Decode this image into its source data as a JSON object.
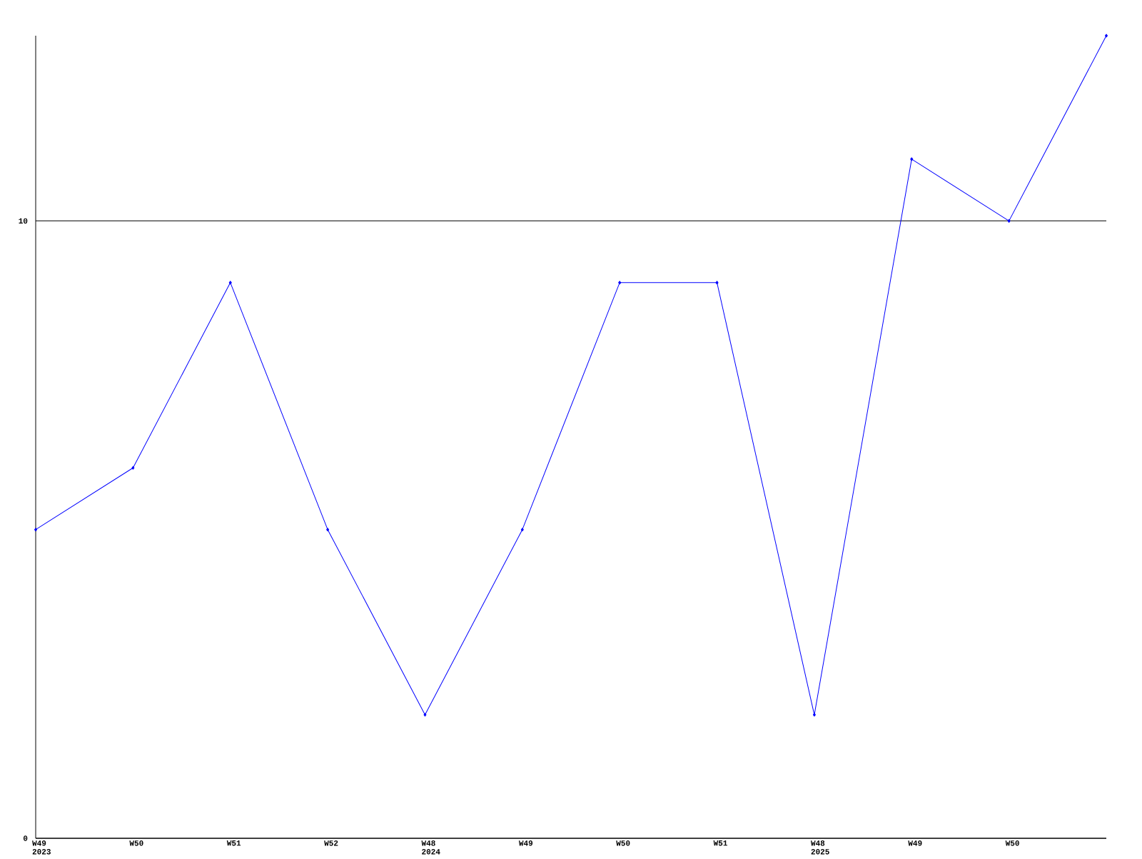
{
  "chart_data": {
    "type": "line",
    "categories": [
      "W49 2023",
      "W50",
      "W51",
      "W52",
      "W48 2024",
      "W49",
      "W50",
      "W51",
      "W48 2025",
      "W49",
      "W50",
      null
    ],
    "series": [
      {
        "color": "#0000ff",
        "values": [
          5,
          6,
          9,
          5,
          2,
          5,
          9,
          9,
          2,
          11,
          10,
          13
        ]
      }
    ],
    "ylim": [
      0,
      13
    ],
    "yticks": [
      0,
      10
    ],
    "grid": "y",
    "marker": "diamond",
    "line_style": "solid"
  }
}
